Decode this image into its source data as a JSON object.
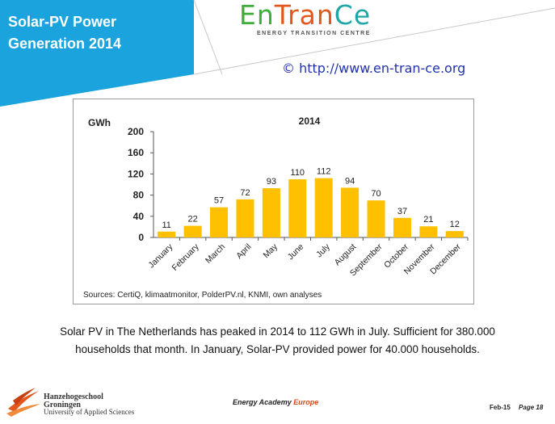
{
  "banner": {
    "line1": "Solar-PV  Power",
    "line2": "Generation  2014",
    "color": "#1ba3dd"
  },
  "logo": {
    "part1": "En",
    "part2": "Tran",
    "part3": "Ce",
    "subtitle": "ENERGY TRANSITION CENTRE",
    "colors": {
      "green": "#3cae3c",
      "orange": "#e2571c",
      "teal": "#1fa6a6"
    }
  },
  "url": "© http://www.en-tran-ce.org",
  "chart_data": {
    "type": "bar",
    "title": "2014",
    "ylabel": "GWh",
    "xlabel": "",
    "categories": [
      "January",
      "February",
      "March",
      "April",
      "May",
      "June",
      "July",
      "August",
      "September",
      "October",
      "November",
      "December"
    ],
    "values": [
      11,
      22,
      57,
      72,
      93,
      110,
      112,
      94,
      70,
      37,
      21,
      12
    ],
    "ylim": [
      0,
      200
    ],
    "yticks": [
      0,
      40,
      80,
      120,
      160,
      200
    ],
    "grid": false,
    "bar_color": "#ffc000"
  },
  "sources": "Sources: CertiQ, klimaatmonitor,  PolderPV.nl, KNMI, own analyses",
  "caption": {
    "line1": "Solar PV in The Netherlands has peaked in 2014 to 112 GWh in July. Sufficient for 380.000",
    "line2": "households  that month. In January, Solar-PV provided power for 40.000 households."
  },
  "footer": {
    "school1": "Hanzehogeschool",
    "school2": "Groningen",
    "school3": "University of Applied Sciences",
    "academy1": "Energy Academy",
    "academy2": "Europe",
    "date": "Feb-15",
    "page": "Page 18"
  }
}
